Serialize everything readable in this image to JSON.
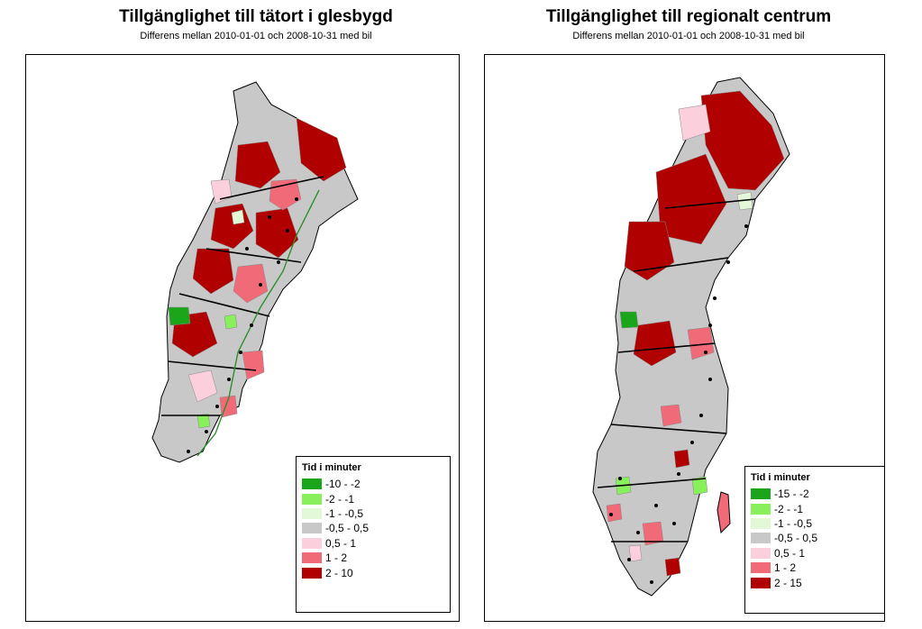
{
  "colors": {
    "c1": "#1aa51a",
    "c2": "#88f05a",
    "c3": "#e2f8d6",
    "c4": "#c8c8c8",
    "c5": "#fbd0dc",
    "c6": "#f06a78",
    "c7": "#b00000",
    "border": "#000000",
    "green_border": "#2f8f2f"
  },
  "left": {
    "title": "Tillgänglighet till tätort i glesbygd",
    "subtitle": "Differens mellan 2010-01-01 och 2008-10-31 med bil",
    "legend": {
      "title": "Tid i minuter",
      "items": [
        {
          "label": "-10 - -2",
          "color": "#1aa51a"
        },
        {
          "label": "-2 - -1",
          "color": "#88f05a"
        },
        {
          "label": "-1 - -0,5",
          "color": "#e2f8d6"
        },
        {
          "label": "-0,5 - 0,5",
          "color": "#c8c8c8"
        },
        {
          "label": "0,5 - 1",
          "color": "#fbd0dc"
        },
        {
          "label": "1 - 2",
          "color": "#f06a78"
        },
        {
          "label": "2 - 10",
          "color": "#b00000"
        }
      ]
    }
  },
  "right": {
    "title": "Tillgänglighet till regionalt centrum",
    "subtitle": "Differens mellan 2010-01-01 och 2008-10-31 med bil",
    "legend": {
      "title": "Tid i minuter",
      "items": [
        {
          "label": "-15 - -2",
          "color": "#1aa51a"
        },
        {
          "label": "-2 - -1",
          "color": "#88f05a"
        },
        {
          "label": "-1 - -0,5",
          "color": "#e2f8d6"
        },
        {
          "label": "-0,5 - 0,5",
          "color": "#c8c8c8"
        },
        {
          "label": "0,5 - 1",
          "color": "#fbd0dc"
        },
        {
          "label": "1 - 2",
          "color": "#f06a78"
        },
        {
          "label": "2 - 15",
          "color": "#b00000"
        }
      ]
    }
  }
}
